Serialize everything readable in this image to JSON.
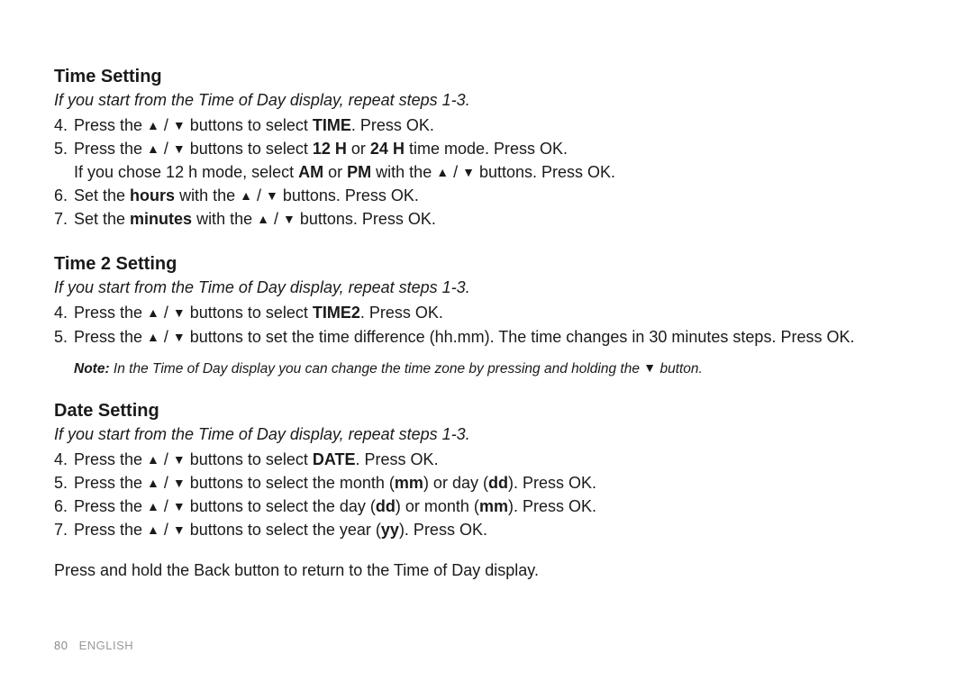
{
  "page": {
    "number": "80",
    "language": "ENGLISH",
    "background_color": "#ffffff",
    "text_color": "#1a1a1a",
    "footer_color": "#9a9a9a",
    "heading_fontsize": 20,
    "body_fontsize": 18,
    "note_fontsize": 15.5,
    "footer_fontsize": 13
  },
  "glyphs": {
    "up": "▲",
    "down": "▼",
    "sep": " / "
  },
  "sections": [
    {
      "heading": "Time Setting",
      "intro": "If you start from the Time of Day display, repeat steps 1-3.",
      "steps": [
        {
          "num": "4.",
          "pre": "Press the ",
          "arrows": true,
          "post": " buttons to select ",
          "bold": "TIME",
          "tail": ". Press OK."
        },
        {
          "num": "5.",
          "pre": "Press the ",
          "arrows": true,
          "post": " buttons to select ",
          "bold": "12 H",
          "mid": " or ",
          "bold2": "24 H",
          "tail": " time mode. Press OK.",
          "sub": {
            "pre": "If you chose 12 h mode, select ",
            "bold": "AM",
            "mid": " or ",
            "bold2": "PM",
            "mid2": " with the ",
            "arrows": true,
            "tail": " buttons. Press OK."
          }
        },
        {
          "num": "6.",
          "pre": "Set the ",
          "bold": "hours",
          "mid": " with the ",
          "arrows": true,
          "tail": " buttons. Press OK."
        },
        {
          "num": "7.",
          "pre": "Set the ",
          "bold": "minutes",
          "mid": " with the ",
          "arrows": true,
          "tail": " buttons. Press OK."
        }
      ]
    },
    {
      "heading": "Time 2 Setting",
      "intro": "If you start from the Time of Day display, repeat steps 1-3.",
      "steps": [
        {
          "num": "4.",
          "pre": "Press the ",
          "arrows": true,
          "post": " buttons to select ",
          "bold": "TIME2",
          "tail": ". Press OK."
        },
        {
          "num": "5.",
          "pre": "Press the ",
          "arrows": true,
          "tail": " buttons to set the time difference (hh.mm). The time changes in 30 minutes steps. Press OK."
        }
      ],
      "note": {
        "label": "Note:",
        "pre": " In the Time of Day display you can change the time zone by pressing and holding the ",
        "arrow_down": true,
        "tail": " button."
      }
    },
    {
      "heading": "Date Setting",
      "intro": "If you start from the Time of Day display, repeat steps 1-3.",
      "steps": [
        {
          "num": "4.",
          "pre": "Press the ",
          "arrows": true,
          "post": " buttons to select ",
          "bold": "DATE",
          "tail": ". Press OK."
        },
        {
          "num": "5.",
          "pre": "Press the ",
          "arrows": true,
          "post": " buttons to select the month (",
          "bold": "mm",
          "mid": ") or day (",
          "bold2": "dd",
          "tail": "). Press OK."
        },
        {
          "num": "6.",
          "pre": "Press the ",
          "arrows": true,
          "post": " buttons to select the day (",
          "bold": "dd",
          "mid": ") or month (",
          "bold2": "mm",
          "tail": "). Press OK."
        },
        {
          "num": "7.",
          "pre": "Press the ",
          "arrows": true,
          "post": " buttons to select the year (",
          "bold": "yy",
          "tail": "). Press OK."
        }
      ],
      "after": "Press and hold the Back button to return to the Time of Day display."
    }
  ]
}
